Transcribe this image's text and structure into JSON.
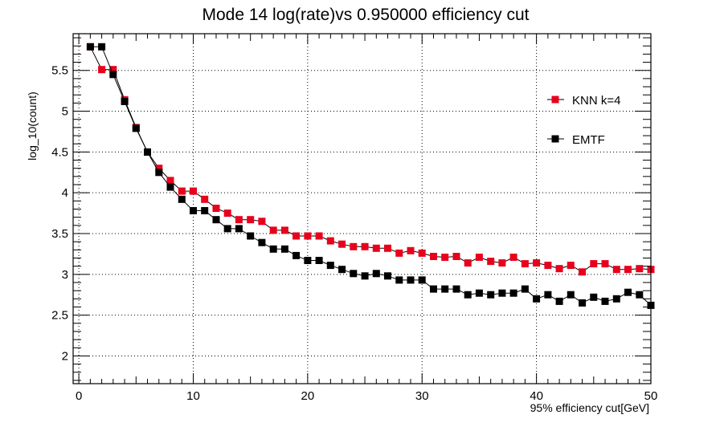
{
  "chart_data": {
    "type": "line",
    "title": "Mode 14 log(rate)vs 0.950000 efficiency cut",
    "xlabel": "95% efficiency cut[GeV]",
    "ylabel": "log_10(count)",
    "xlim": [
      -0.5,
      50
    ],
    "ylim": [
      1.66,
      5.95
    ],
    "xticks": [
      0,
      10,
      20,
      30,
      40,
      50
    ],
    "yticks": [
      2,
      2.5,
      3,
      3.5,
      4,
      4.5,
      5,
      5.5
    ],
    "ytick_labels": [
      "2",
      "2.5",
      "3",
      "3.5",
      "4",
      "4.5",
      "5",
      "5.5"
    ],
    "grid": true,
    "legend_position": "top-right",
    "x": [
      1,
      2,
      3,
      4,
      5,
      6,
      7,
      8,
      9,
      10,
      11,
      12,
      13,
      14,
      15,
      16,
      17,
      18,
      19,
      20,
      21,
      22,
      23,
      24,
      25,
      26,
      27,
      28,
      29,
      30,
      31,
      32,
      33,
      34,
      35,
      36,
      37,
      38,
      39,
      40,
      41,
      42,
      43,
      44,
      45,
      46,
      47,
      48,
      49,
      50
    ],
    "series": [
      {
        "name": "KNN k=4",
        "color": "#e8001c",
        "values": [
          5.79,
          5.51,
          5.51,
          5.14,
          4.8,
          4.5,
          4.3,
          4.15,
          4.02,
          4.02,
          3.92,
          3.81,
          3.75,
          3.67,
          3.67,
          3.65,
          3.54,
          3.54,
          3.47,
          3.47,
          3.47,
          3.41,
          3.37,
          3.34,
          3.34,
          3.32,
          3.32,
          3.26,
          3.29,
          3.26,
          3.22,
          3.21,
          3.22,
          3.14,
          3.21,
          3.16,
          3.14,
          3.21,
          3.13,
          3.14,
          3.11,
          3.07,
          3.11,
          3.03,
          3.13,
          3.13,
          3.06,
          3.06,
          3.07,
          3.06
        ]
      },
      {
        "name": "EMTF",
        "color": "#000000",
        "values": [
          5.79,
          5.79,
          5.45,
          5.12,
          4.79,
          4.5,
          4.25,
          4.07,
          3.92,
          3.78,
          3.78,
          3.67,
          3.56,
          3.56,
          3.47,
          3.39,
          3.31,
          3.31,
          3.23,
          3.17,
          3.17,
          3.11,
          3.06,
          3.01,
          2.98,
          3.01,
          2.98,
          2.93,
          2.93,
          2.93,
          2.82,
          2.82,
          2.82,
          2.75,
          2.77,
          2.75,
          2.77,
          2.77,
          2.82,
          2.7,
          2.75,
          2.67,
          2.75,
          2.65,
          2.72,
          2.67,
          2.7,
          2.78,
          2.75,
          2.62
        ]
      }
    ]
  }
}
